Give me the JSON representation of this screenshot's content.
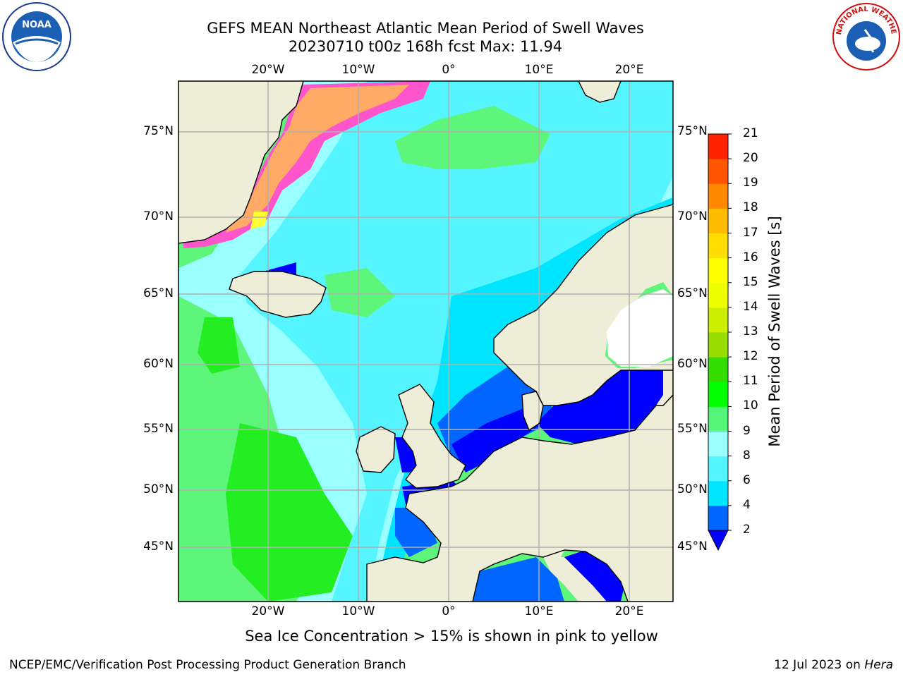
{
  "title_line1": "GEFS MEAN Northeast Atlantic Mean Period of Swell Waves",
  "title_line2": "20230710 t00z 168h fcst   Max: 11.94",
  "caption": "Sea Ice Concentration > 15% is shown in pink to yellow",
  "footer_left": "NCEP/EMC/Verification Post Processing Product Generation Branch",
  "footer_right_date": "12 Jul 2023 on ",
  "footer_right_host": "Hera",
  "colorbar_label": "Mean Period of Swell Waves [s]",
  "colorbar_ticks": [
    "2",
    "4",
    "6",
    "8",
    "9",
    "10",
    "11",
    "12",
    "13",
    "14",
    "15",
    "16",
    "17",
    "18",
    "19",
    "20",
    "21"
  ],
  "colorbar_colors": [
    "#0066ff",
    "#00e5ff",
    "#55f5ff",
    "#99ffff",
    "#55f57a",
    "#00ff00",
    "#33dd00",
    "#99dd00",
    "#ccee00",
    "#eeff00",
    "#ffff00",
    "#ffdd00",
    "#ffbb00",
    "#ff8800",
    "#ff5500",
    "#ff2200"
  ],
  "colorbar_extend_color": "#0000ff",
  "lat_labels": [
    "75°N",
    "70°N",
    "65°N",
    "60°N",
    "55°N",
    "50°N",
    "45°N"
  ],
  "lon_labels": [
    "20°W",
    "10°W",
    "0°",
    "10°E",
    "20°E"
  ],
  "map_colors": {
    "land": "#eeedd8",
    "grid": "#b0b0b0",
    "ocean_green": "#5df57a",
    "ocean_bright_green": "#22ee22",
    "ocean_light_cyan": "#99ffff",
    "ocean_cyan": "#55f5ff",
    "ocean_deep_cyan": "#00e5ff",
    "ocean_blue": "#0066ff",
    "ocean_dark_blue": "#0000ff",
    "ice_pink": "#ff55cc",
    "ice_orange": "#ffaa66",
    "ice_yellow": "#ffff33"
  },
  "logos": {
    "left": {
      "name": "noaa-logo",
      "text": "NOAA"
    },
    "right": {
      "name": "nws-logo",
      "text": "NATIONAL WEATHER SERVICE"
    }
  }
}
